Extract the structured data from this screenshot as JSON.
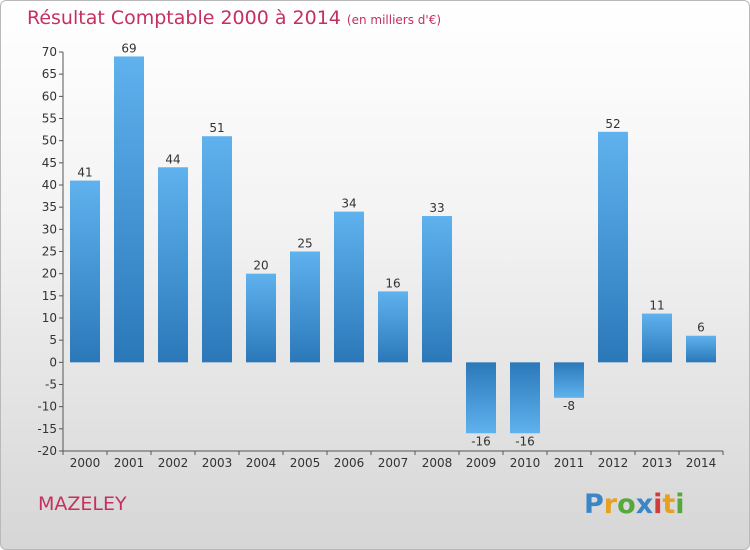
{
  "title": "Résultat Comptable 2000 à 2014",
  "subtitle": "(en milliers d'€)",
  "location": "MAZELEY",
  "logo": {
    "letters": [
      "P",
      "r",
      "o",
      "x",
      "i",
      "t",
      "i"
    ],
    "colors": [
      "#3c86c8",
      "#e8a020",
      "#55a83c",
      "#3c86c8",
      "#d23c3c",
      "#e8a020",
      "#55a83c"
    ]
  },
  "chart_data": {
    "type": "bar",
    "categories": [
      "2000",
      "2001",
      "2002",
      "2003",
      "2004",
      "2005",
      "2006",
      "2007",
      "2008",
      "2009",
      "2010",
      "2011",
      "2012",
      "2013",
      "2014"
    ],
    "values": [
      41,
      69,
      44,
      51,
      20,
      25,
      34,
      16,
      33,
      -16,
      -16,
      -8,
      52,
      11,
      6
    ],
    "data_labels": [
      "41",
      "69",
      "44",
      "51",
      "20",
      "25",
      "34",
      "16",
      "33",
      "-16",
      "-16",
      "-8",
      "52",
      "11",
      "6"
    ],
    "ylim": [
      -20,
      70
    ],
    "yticks": [
      70,
      65,
      60,
      55,
      50,
      45,
      40,
      35,
      30,
      25,
      20,
      15,
      10,
      5,
      0,
      -5,
      -10,
      -15,
      -20
    ],
    "ytick_labels": [
      "70",
      "65",
      "60",
      "55",
      "50",
      "45",
      "40",
      "35",
      "30",
      "25",
      "20",
      "15",
      "10",
      "5",
      "0",
      "-5",
      "-10",
      "-15",
      "-20"
    ],
    "grid": false,
    "bar_color": "#3a8fd6"
  }
}
